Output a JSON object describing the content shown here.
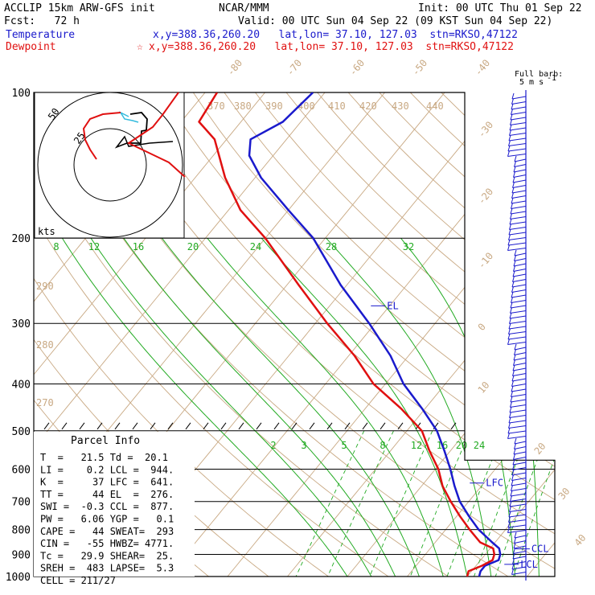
{
  "header": {
    "model": "ACCLIP 15km ARW-GFS init",
    "org": "NCAR/MMM",
    "init": "Init: 00 UTC Thu 01 Sep 22",
    "fcst": "Fcst:   72 h",
    "valid": "Valid: 00 UTC Sun 04 Sep 22 (09 KST Sun 04 Sep 22)",
    "temp_label": "Temperature",
    "temp_info": "x,y=388.36,260.20   lat,lon= 37.10, 127.03  stn=RKSO,47122",
    "dew_label": "Dewpoint",
    "dew_marker": "☆",
    "dew_info": "x,y=388.36,260.20   lat,lon= 37.10, 127.03  stn=RKSO,47122",
    "temp_color": "#1a1acc",
    "dew_color": "#e01010"
  },
  "barb_key": {
    "line1": "Full barb:",
    "line2": "5 m s",
    "unit_sup": "-1"
  },
  "hodograph": {
    "unit": "kts",
    "ring_labels": [
      "50",
      "25"
    ]
  },
  "parcel": {
    "title": "Parcel Info",
    "rows": [
      "T  =   21.5 Td =  20.1",
      "LI =    0.2 LCL =  944.",
      "K  =     37 LFC =  641.",
      "TT =     44 EL  =  276.",
      "SWI =  -0.3 CCL =  877.",
      "PW =   6.06 YGP =   0.1",
      "CAPE =   44 SWEAT=  293",
      "CIN =   -55 HWBZ= 4771.",
      "Tc =   29.9 SHEAR=  25.",
      "SREH =  483 LAPSE=  5.3",
      "CELL = 211/27"
    ]
  },
  "chart_data": {
    "type": "line",
    "title": "ACCLIP 15km ARW-GFS init",
    "ylabel": "",
    "y_axis_type": "log pressure (hPa)",
    "pressure_ticks": [
      "100",
      "200",
      "300",
      "400",
      "500",
      "600",
      "700",
      "800",
      "900",
      "1000"
    ],
    "isotherm_labels_upper": [
      "8",
      "12",
      "16",
      "20",
      "24",
      "28",
      "32"
    ],
    "isotherm_labels_lower": [
      "-80",
      "-70",
      "-60",
      "-50",
      "-40",
      "-30",
      "-20",
      "-10",
      "0",
      "10",
      "20",
      "30",
      "40"
    ],
    "mixing_ratio_labels": [
      "2",
      "3",
      "5",
      "8",
      "12",
      "16",
      "20",
      "24"
    ],
    "theta_labels_top": [
      "370",
      "380",
      "390",
      "400",
      "410",
      "420",
      "430",
      "440"
    ],
    "theta_labels_left": [
      "290",
      "280",
      "270"
    ],
    "level_labels": [
      {
        "name": "EL",
        "pressure": 276
      },
      {
        "name": "LFC",
        "pressure": 641
      },
      {
        "name": "CCL",
        "pressure": 877
      },
      {
        "name": "LCL",
        "pressure": 944
      }
    ],
    "series": [
      {
        "name": "Temperature",
        "color": "#1a1acc",
        "points": [
          [
            1000,
            22.0
          ],
          [
            975,
            21.5
          ],
          [
            950,
            21.5
          ],
          [
            925,
            23.0
          ],
          [
            900,
            22.5
          ],
          [
            875,
            21.5
          ],
          [
            850,
            19.5
          ],
          [
            800,
            15.5
          ],
          [
            750,
            12.0
          ],
          [
            700,
            8.5
          ],
          [
            650,
            5.5
          ],
          [
            600,
            2.5
          ],
          [
            550,
            -1.0
          ],
          [
            500,
            -5.0
          ],
          [
            450,
            -10.5
          ],
          [
            400,
            -17.0
          ],
          [
            350,
            -23.0
          ],
          [
            300,
            -31.0
          ],
          [
            250,
            -41.0
          ],
          [
            200,
            -52.0
          ],
          [
            175,
            -60.0
          ],
          [
            150,
            -69.0
          ],
          [
            135,
            -74.0
          ],
          [
            125,
            -76.0
          ],
          [
            115,
            -73.0
          ],
          [
            100,
            -72.0
          ]
        ]
      },
      {
        "name": "Dewpoint",
        "color": "#e01010",
        "points": [
          [
            1000,
            20.0
          ],
          [
            975,
            19.5
          ],
          [
            950,
            21.0
          ],
          [
            925,
            22.0
          ],
          [
            900,
            21.5
          ],
          [
            875,
            20.5
          ],
          [
            850,
            17.5
          ],
          [
            800,
            14.0
          ],
          [
            750,
            10.5
          ],
          [
            700,
            7.0
          ],
          [
            650,
            3.5
          ],
          [
            600,
            0.5
          ],
          [
            550,
            -3.5
          ],
          [
            500,
            -7.5
          ],
          [
            450,
            -14.0
          ],
          [
            400,
            -22.0
          ],
          [
            350,
            -29.0
          ],
          [
            300,
            -38.0
          ],
          [
            250,
            -48.0
          ],
          [
            200,
            -60.0
          ],
          [
            175,
            -68.0
          ],
          [
            150,
            -75.0
          ],
          [
            125,
            -82.0
          ],
          [
            115,
            -87.0
          ],
          [
            100,
            -88.0
          ]
        ]
      }
    ]
  }
}
